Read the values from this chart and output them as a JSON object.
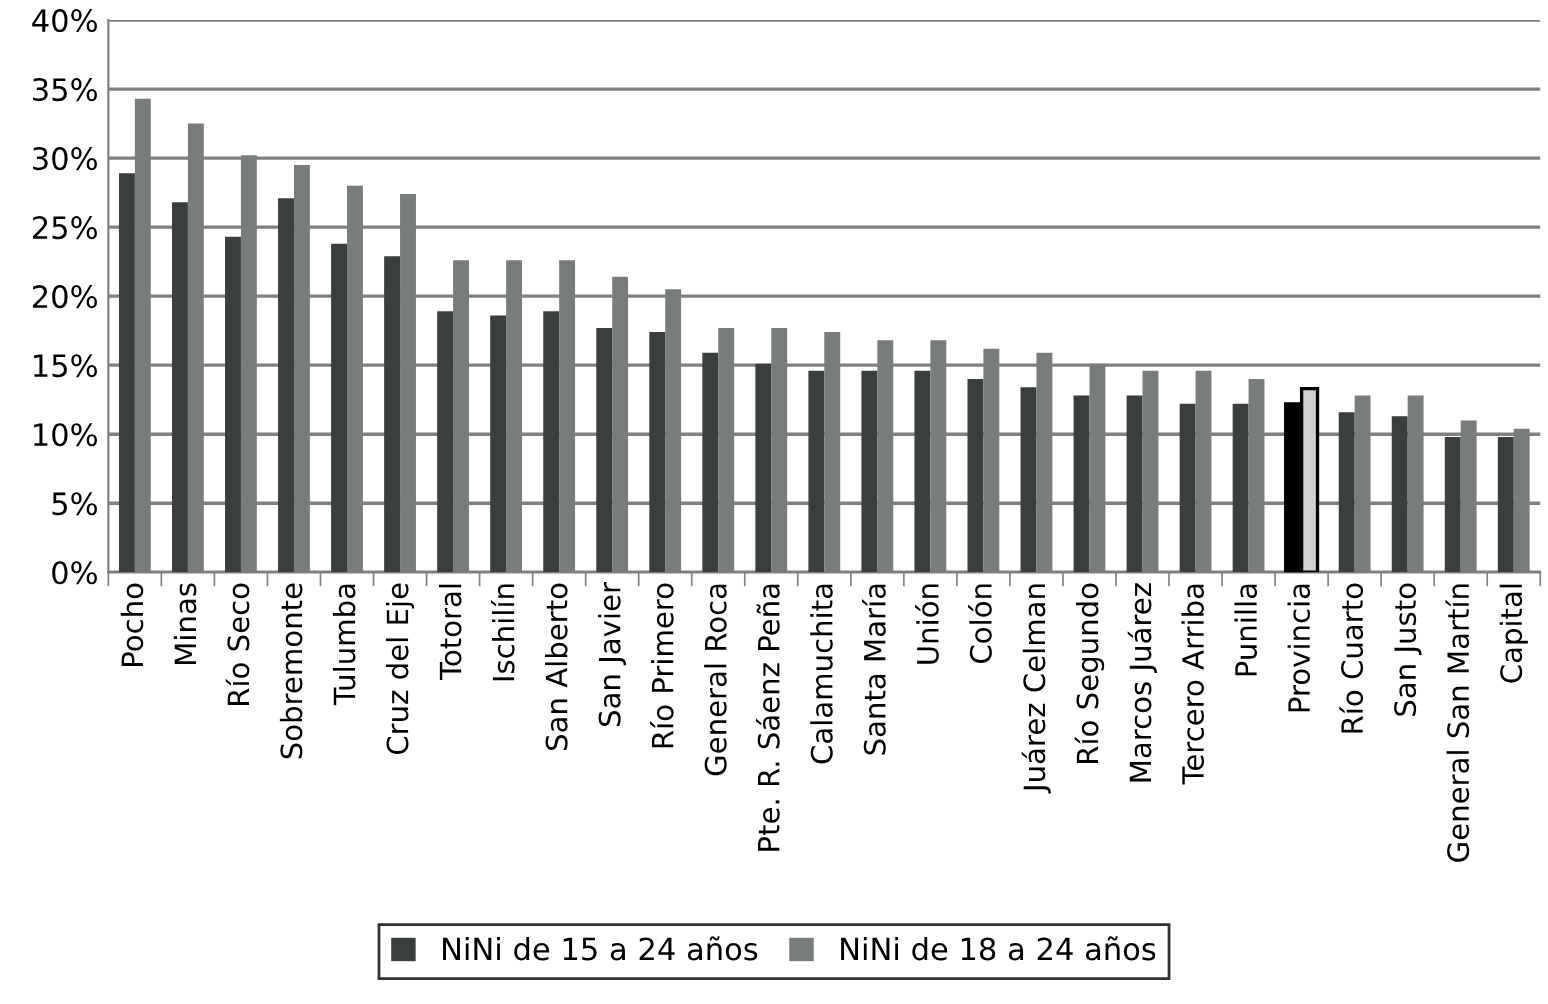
{
  "chart_data": {
    "type": "bar",
    "categories": [
      "Pocho",
      "Minas",
      "Río Seco",
      "Sobremonte",
      "Tulumba",
      "Cruz del Eje",
      "Totoral",
      "Ischilín",
      "San Alberto",
      "San Javier",
      "Río Primero",
      "General Roca",
      "Pte. R. Sáenz Peña",
      "Calamuchita",
      "Santa María",
      "Unión",
      "Colón",
      "Juárez Celman",
      "Río Segundo",
      "Marcos Juárez",
      "Tercero Arriba",
      "Punilla",
      "Provincia",
      "Río Cuarto",
      "San Justo",
      "General San Martín",
      "Capital"
    ],
    "series": [
      {
        "name": "NiNi de 15 a 24 años",
        "color": "#3a3e3f",
        "colors": [
          "#3a3e3f",
          "#3a3e3f",
          "#3a3e3f",
          "#3a3e3f",
          "#3a3e3f",
          "#3a3e3f",
          "#3a3e3f",
          "#3a3e3f",
          "#3a3e3f",
          "#3a3e3f",
          "#3a3e3f",
          "#3a3e3f",
          "#3a3e3f",
          "#3a3e3f",
          "#3a3e3f",
          "#3a3e3f",
          "#3a3e3f",
          "#3a3e3f",
          "#3a3e3f",
          "#3a3e3f",
          "#3a3e3f",
          "#3a3e3f",
          "#000000",
          "#3a3e3f",
          "#3a3e3f",
          "#3a3e3f",
          "#3a3e3f"
        ],
        "values": [
          28.9,
          26.8,
          24.3,
          27.1,
          23.8,
          22.9,
          18.9,
          18.6,
          18.9,
          17.7,
          17.4,
          15.9,
          15.1,
          14.6,
          14.6,
          14.6,
          14.0,
          13.4,
          12.8,
          12.8,
          12.2,
          12.2,
          12.2,
          11.6,
          11.3,
          9.8,
          9.8
        ]
      },
      {
        "name": "NiNi de 18 a 24 años",
        "color": "#787c7d",
        "colors": [
          "#787c7d",
          "#787c7d",
          "#787c7d",
          "#787c7d",
          "#787c7d",
          "#787c7d",
          "#787c7d",
          "#787c7d",
          "#787c7d",
          "#787c7d",
          "#787c7d",
          "#787c7d",
          "#787c7d",
          "#787c7d",
          "#787c7d",
          "#787c7d",
          "#787c7d",
          "#787c7d",
          "#787c7d",
          "#787c7d",
          "#787c7d",
          "#787c7d",
          "#d0d0d0",
          "#787c7d",
          "#787c7d",
          "#787c7d",
          "#787c7d"
        ],
        "values": [
          34.3,
          32.5,
          30.2,
          29.5,
          28.0,
          27.4,
          22.6,
          22.6,
          22.6,
          21.4,
          20.5,
          17.7,
          17.7,
          17.4,
          16.8,
          16.8,
          16.2,
          15.9,
          15.1,
          14.6,
          14.6,
          14.0,
          13.3,
          12.8,
          12.8,
          11.0,
          10.4
        ]
      }
    ],
    "ylim": [
      0,
      40
    ],
    "yticks": [
      {
        "value": 0,
        "label": "0%"
      },
      {
        "value": 5,
        "label": "5%"
      },
      {
        "value": 10,
        "label": "10%"
      },
      {
        "value": 15,
        "label": "15%"
      },
      {
        "value": 20,
        "label": "20%"
      },
      {
        "value": 25,
        "label": "25%"
      },
      {
        "value": 30,
        "label": "30%"
      },
      {
        "value": 35,
        "label": "35%"
      },
      {
        "value": 40,
        "label": "40%"
      }
    ],
    "grid": "y",
    "legend": "bottom"
  }
}
